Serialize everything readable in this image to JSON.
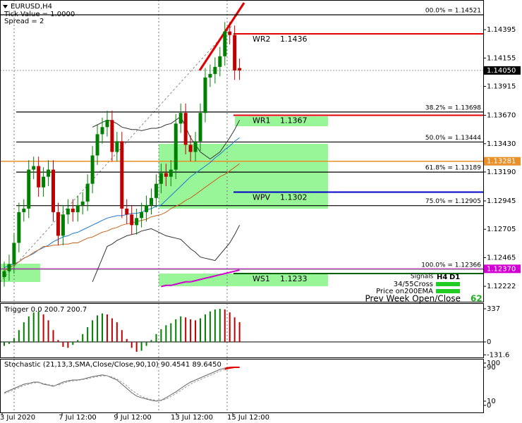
{
  "header": {
    "symbol": "EURUSD,H4",
    "tick_value": "Tick Value = 1.0000",
    "spread": "Spread = 2"
  },
  "candles": {
    "up_color": "#008000",
    "down_color": "#c00000",
    "open": [
      1.123,
      1.1235,
      1.1241,
      1.1259,
      1.1285,
      1.1288,
      1.1321,
      1.1324,
      1.1306,
      1.1315,
      1.1321,
      1.1285,
      1.1265,
      1.1283,
      1.1288,
      1.1285,
      1.1291,
      1.1294,
      1.1309,
      1.1333,
      1.1351,
      1.1357,
      1.1363,
      1.1336,
      1.1345,
      1.1288,
      1.1283,
      1.1274,
      1.128,
      1.1285,
      1.1291,
      1.1297,
      1.1309,
      1.1318,
      1.1315,
      1.1321,
      1.136,
      1.1369,
      1.1342,
      1.1336,
      1.1345,
      1.1369,
      1.1399,
      1.1402,
      1.1408,
      1.1417,
      1.1438,
      1.1435,
      1.1407
    ],
    "high": [
      1.1243,
      1.1249,
      1.1267,
      1.1293,
      1.1296,
      1.1329,
      1.1332,
      1.1332,
      1.1323,
      1.1329,
      1.1329,
      1.1293,
      1.1291,
      1.1296,
      1.1296,
      1.1299,
      1.1302,
      1.1317,
      1.1341,
      1.1359,
      1.1365,
      1.1371,
      1.1371,
      1.1353,
      1.1353,
      1.1296,
      1.1291,
      1.1288,
      1.1293,
      1.1299,
      1.1305,
      1.1317,
      1.1326,
      1.1326,
      1.1329,
      1.1368,
      1.1377,
      1.1377,
      1.135,
      1.1353,
      1.1377,
      1.1407,
      1.141,
      1.1416,
      1.1425,
      1.1446,
      1.1446,
      1.1443,
      1.1415
    ],
    "low": [
      1.1222,
      1.1227,
      1.1233,
      1.1251,
      1.1277,
      1.128,
      1.1313,
      1.1298,
      1.1298,
      1.1307,
      1.1277,
      1.1257,
      1.1257,
      1.1275,
      1.1277,
      1.1277,
      1.1283,
      1.1286,
      1.1301,
      1.1325,
      1.1343,
      1.1349,
      1.1328,
      1.1328,
      1.128,
      1.1275,
      1.1266,
      1.1266,
      1.1272,
      1.1277,
      1.1283,
      1.1289,
      1.1301,
      1.1307,
      1.1307,
      1.1313,
      1.1352,
      1.1334,
      1.1328,
      1.1328,
      1.1337,
      1.1361,
      1.1391,
      1.1394,
      1.14,
      1.1409,
      1.1427,
      1.1397,
      1.1397
    ],
    "close": [
      1.1235,
      1.1241,
      1.1259,
      1.1285,
      1.1288,
      1.1321,
      1.1324,
      1.1306,
      1.1315,
      1.1321,
      1.1285,
      1.1265,
      1.1283,
      1.1288,
      1.1285,
      1.1291,
      1.1294,
      1.1309,
      1.1333,
      1.1351,
      1.1357,
      1.1363,
      1.1336,
      1.1345,
      1.1288,
      1.1283,
      1.1274,
      1.128,
      1.1285,
      1.1291,
      1.1297,
      1.1309,
      1.1318,
      1.1315,
      1.1321,
      1.136,
      1.1369,
      1.1342,
      1.1336,
      1.1345,
      1.1369,
      1.1399,
      1.1402,
      1.1408,
      1.1417,
      1.1438,
      1.1435,
      1.1405,
      1.1405
    ]
  },
  "overlays": [
    {
      "color": "#1e78d2",
      "values": [
        1.1238,
        1.124,
        1.1241,
        1.1243,
        1.1246,
        1.1248,
        1.125,
        1.1253,
        1.1255,
        1.1257,
        1.126,
        1.1262,
        1.1264,
        1.1265,
        1.1267,
        1.1268,
        1.127,
        1.1272,
        1.1274,
        1.1276,
        1.1278,
        1.128,
        1.1281,
        1.1282,
        1.1282,
        1.1283,
        1.1284,
        1.1284,
        1.1285,
        1.1287,
        1.1288,
        1.129,
        1.1291,
        1.1295,
        1.1299,
        1.1303,
        1.1307,
        1.1311,
        1.1315,
        1.1318,
        1.1321,
        1.1324,
        1.1327,
        1.1331,
        1.1334,
        1.1338,
        1.1341,
        1.1345,
        1.1348
      ]
    },
    {
      "color": "#c8641e",
      "values": [
        1.1235,
        1.1238,
        1.124,
        1.1243,
        1.1246,
        1.1248,
        1.1251,
        1.1253,
        1.1256,
        1.1256,
        1.1257,
        1.1257,
        1.1258,
        1.1258,
        1.1259,
        1.1259,
        1.1261,
        1.1263,
        1.1264,
        1.1266,
        1.1268,
        1.1269,
        1.1271,
        1.1272,
        1.1274,
        1.1275,
        1.1276,
        1.1277,
        1.1278,
        1.1279,
        1.1281,
        1.1282,
        1.1283,
        1.1285,
        1.1288,
        1.129,
        1.1292,
        1.1295,
        1.1297,
        1.13,
        1.1303,
        1.1306,
        1.1309,
        1.1312,
        1.1315,
        1.1317,
        1.132,
        1.1323,
        1.1326
      ]
    },
    {
      "color": "#d200d2",
      "values": [
        null,
        null,
        null,
        null,
        null,
        null,
        null,
        null,
        null,
        null,
        null,
        null,
        null,
        null,
        null,
        null,
        null,
        null,
        null,
        null,
        null,
        null,
        null,
        null,
        null,
        null,
        null,
        null,
        null,
        null,
        null,
        null,
        1.1222,
        1.1223,
        1.1223,
        1.1224,
        1.1225,
        1.1226,
        1.1226,
        1.1227,
        1.1228,
        1.1229,
        1.123,
        1.1231,
        1.1232,
        1.1233,
        1.1234,
        1.1235,
        1.1236
      ]
    },
    {
      "color": "#333333",
      "values": [
        null,
        null,
        null,
        null,
        null,
        null,
        null,
        null,
        null,
        null,
        null,
        null,
        null,
        null,
        null,
        null,
        null,
        null,
        1.1357,
        1.1359,
        1.1361,
        1.1363,
        1.1362,
        1.136,
        1.1357,
        1.1356,
        1.1355,
        1.1355,
        1.1354,
        1.1355,
        1.1356,
        1.1356,
        1.1357,
        1.1359,
        1.136,
        1.1363,
        1.1366,
        1.1357,
        1.1348,
        1.1342,
        1.1336,
        1.1333,
        1.133,
        1.1333,
        1.1336,
        1.1342,
        1.1348,
        1.1355,
        1.1363
      ]
    },
    {
      "color": "#333333",
      "values": [
        null,
        null,
        null,
        null,
        null,
        null,
        null,
        null,
        null,
        null,
        null,
        null,
        null,
        null,
        null,
        null,
        null,
        null,
        1.1226,
        1.1236,
        1.1246,
        1.1256,
        1.1258,
        1.1261,
        1.1263,
        1.1265,
        1.1266,
        1.1267,
        1.1269,
        1.127,
        1.1271,
        1.1269,
        1.1267,
        1.1265,
        1.1264,
        1.1263,
        1.1262,
        1.1258,
        1.1254,
        1.1251,
        1.1247,
        1.1246,
        1.1245,
        1.1244,
        1.1249,
        1.1254,
        1.1259,
        1.1266,
        1.1274
      ]
    }
  ],
  "fibonacci": [
    {
      "label": "00.0% = 1.14521",
      "price": 1.14521
    },
    {
      "label": "38.2% = 1.13698",
      "price": 1.13698
    },
    {
      "label": "50.0% = 1.13444",
      "price": 1.13444
    },
    {
      "label": "61.8% = 1.13189",
      "price": 1.13189
    },
    {
      "label": "75.0% = 1.12905",
      "price": 1.12905
    },
    {
      "label": "100.0% = 1.12366",
      "price": 1.12366
    }
  ],
  "pivots": [
    {
      "name": "WR2",
      "value": 1.1436,
      "color": "#e00000"
    },
    {
      "name": "WR1",
      "value": 1.1367,
      "color": "#e00000"
    },
    {
      "name": "WPV",
      "value": 1.1302,
      "color": "#0000c8"
    },
    {
      "name": "WS1",
      "value": 1.1233,
      "color": "#006400"
    }
  ],
  "price_axis": {
    "ticks": [
      1.14395,
      1.14155,
      1.13915,
      {
        "value": 1.1367,
        "label": "1.13670"
      },
      {
        "value": 1.1343,
        "label": "1.13430"
      },
      {
        "value": 1.1319,
        "label": "1.13190"
      },
      1.12945,
      1.12705,
      1.12465,
      1.12222
    ],
    "tags": [
      {
        "value": 1.1405,
        "label": "1.14050",
        "color": "#000000"
      },
      {
        "value": 1.13281,
        "label": "1.13281",
        "color": "#e8902a"
      },
      {
        "value": 1.1237,
        "label": "1.12370",
        "color": "#d200d2"
      }
    ]
  },
  "signals": {
    "title": "Signals",
    "h4": "H4",
    "d1": "D1",
    "rows": [
      "34/55Cross",
      "Price on200EMA"
    ],
    "prev_week": "Prev Week Open/Close",
    "count": 62
  },
  "trigger": {
    "title": "Trigger 0.0 200.7 200.7",
    "up_color": "#008000",
    "down_color": "#c00000",
    "ticks": [
      337,
      0,
      -131.6
    ],
    "values": [
      -40,
      -20,
      40,
      120,
      200,
      260,
      300,
      310,
      280,
      220,
      120,
      20,
      -50,
      -60,
      -30,
      20,
      80,
      150,
      220,
      270,
      290,
      280,
      240,
      200,
      120,
      30,
      -60,
      -100,
      -90,
      -40,
      20,
      80,
      130,
      170,
      190,
      230,
      260,
      250,
      230,
      220,
      240,
      280,
      310,
      330,
      337,
      330,
      300,
      250,
      200.7
    ]
  },
  "stochastic": {
    "title": "Stochastic (21,13,3,SMA,Close/Close,90,10) 90.4541 89.6450",
    "ticks": [
      100,
      90,
      10,
      0
    ],
    "main": [
      30,
      35,
      40,
      45,
      50,
      52,
      55,
      55,
      50,
      48,
      45,
      50,
      55,
      58,
      60,
      60,
      62,
      65,
      68,
      70,
      72,
      70,
      65,
      60,
      50,
      40,
      30,
      22,
      18,
      15,
      12,
      10,
      12,
      18,
      25,
      32,
      40,
      48,
      55,
      60,
      65,
      70,
      75,
      80,
      85,
      88,
      90,
      90.5,
      90.4541
    ],
    "signal": [
      28,
      32,
      37,
      42,
      47,
      50,
      53,
      54,
      52,
      49,
      47,
      48,
      52,
      56,
      58,
      59,
      61,
      63,
      66,
      68,
      70,
      70,
      67,
      62,
      55,
      46,
      36,
      28,
      21,
      17,
      14,
      12,
      11,
      15,
      21,
      28,
      35,
      43,
      50,
      56,
      61,
      66,
      71,
      76,
      81,
      85,
      88,
      89.5,
      89.645
    ]
  },
  "time_labels": [
    "3 Jul 2020",
    "7 Jul 12:00",
    "9 Jul 12:00",
    "13 Jul 12:00",
    "15 Jul 12:00"
  ]
}
